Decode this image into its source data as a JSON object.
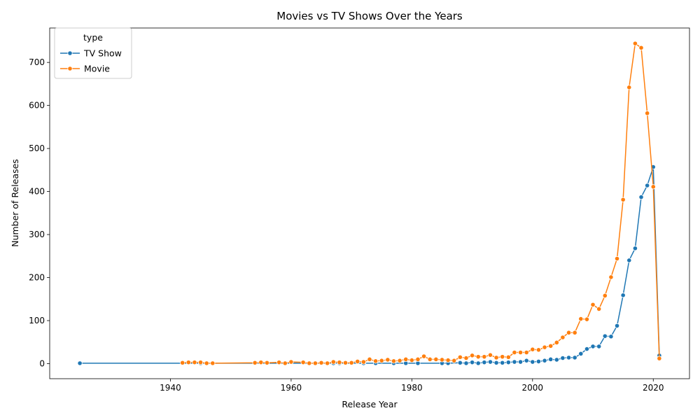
{
  "chart_data": {
    "type": "line",
    "title": "Movies vs TV Shows Over the Years",
    "xlabel": "Release Year",
    "ylabel": "Number of Releases",
    "xlim": [
      1920,
      2026
    ],
    "ylim": [
      -35,
      780
    ],
    "xticks": [
      1940,
      1960,
      1980,
      2000,
      2020
    ],
    "yticks": [
      0,
      100,
      200,
      300,
      400,
      500,
      600,
      700
    ],
    "grid": false,
    "legend": {
      "title": "type",
      "placement": "top-left"
    },
    "series": [
      {
        "name": "TV Show",
        "color": "#1f77b4",
        "points": [
          [
            1925,
            1
          ],
          [
            1945,
            1
          ],
          [
            1946,
            1
          ],
          [
            1963,
            1
          ],
          [
            1967,
            1
          ],
          [
            1968,
            1
          ],
          [
            1972,
            1
          ],
          [
            1974,
            1
          ],
          [
            1977,
            1
          ],
          [
            1979,
            1
          ],
          [
            1981,
            1
          ],
          [
            1985,
            1
          ],
          [
            1986,
            1
          ],
          [
            1988,
            2
          ],
          [
            1989,
            1
          ],
          [
            1990,
            3
          ],
          [
            1991,
            1
          ],
          [
            1992,
            3
          ],
          [
            1993,
            4
          ],
          [
            1994,
            2
          ],
          [
            1995,
            2
          ],
          [
            1996,
            3
          ],
          [
            1997,
            4
          ],
          [
            1998,
            4
          ],
          [
            1999,
            7
          ],
          [
            2000,
            4
          ],
          [
            2001,
            5
          ],
          [
            2002,
            7
          ],
          [
            2003,
            10
          ],
          [
            2004,
            9
          ],
          [
            2005,
            13
          ],
          [
            2006,
            14
          ],
          [
            2007,
            14
          ],
          [
            2008,
            23
          ],
          [
            2009,
            34
          ],
          [
            2010,
            40
          ],
          [
            2011,
            40
          ],
          [
            2012,
            64
          ],
          [
            2013,
            63
          ],
          [
            2014,
            88
          ],
          [
            2015,
            159
          ],
          [
            2016,
            240
          ],
          [
            2017,
            268
          ],
          [
            2018,
            387
          ],
          [
            2019,
            414
          ],
          [
            2020,
            457
          ],
          [
            2021,
            19
          ]
        ]
      },
      {
        "name": "Movie",
        "color": "#ff7f0e",
        "points": [
          [
            1942,
            2
          ],
          [
            1943,
            3
          ],
          [
            1944,
            3
          ],
          [
            1945,
            3
          ],
          [
            1946,
            1
          ],
          [
            1947,
            1
          ],
          [
            1954,
            2
          ],
          [
            1955,
            3
          ],
          [
            1956,
            2
          ],
          [
            1958,
            3
          ],
          [
            1959,
            1
          ],
          [
            1960,
            4
          ],
          [
            1962,
            3
          ],
          [
            1963,
            1
          ],
          [
            1964,
            1
          ],
          [
            1965,
            2
          ],
          [
            1966,
            1
          ],
          [
            1967,
            4
          ],
          [
            1968,
            3
          ],
          [
            1969,
            2
          ],
          [
            1970,
            2
          ],
          [
            1971,
            5
          ],
          [
            1972,
            4
          ],
          [
            1973,
            10
          ],
          [
            1974,
            6
          ],
          [
            1975,
            7
          ],
          [
            1976,
            9
          ],
          [
            1977,
            6
          ],
          [
            1978,
            7
          ],
          [
            1979,
            10
          ],
          [
            1980,
            8
          ],
          [
            1981,
            10
          ],
          [
            1982,
            17
          ],
          [
            1983,
            10
          ],
          [
            1984,
            10
          ],
          [
            1985,
            9
          ],
          [
            1986,
            8
          ],
          [
            1987,
            7
          ],
          [
            1988,
            15
          ],
          [
            1989,
            13
          ],
          [
            1990,
            19
          ],
          [
            1991,
            16
          ],
          [
            1992,
            16
          ],
          [
            1993,
            20
          ],
          [
            1994,
            14
          ],
          [
            1995,
            16
          ],
          [
            1996,
            15
          ],
          [
            1997,
            26
          ],
          [
            1998,
            26
          ],
          [
            1999,
            26
          ],
          [
            2000,
            33
          ],
          [
            2001,
            32
          ],
          [
            2002,
            38
          ],
          [
            2003,
            41
          ],
          [
            2004,
            49
          ],
          [
            2005,
            61
          ],
          [
            2006,
            72
          ],
          [
            2007,
            72
          ],
          [
            2008,
            104
          ],
          [
            2009,
            103
          ],
          [
            2010,
            137
          ],
          [
            2011,
            127
          ],
          [
            2012,
            158
          ],
          [
            2013,
            201
          ],
          [
            2014,
            244
          ],
          [
            2015,
            381
          ],
          [
            2016,
            642
          ],
          [
            2017,
            744
          ],
          [
            2018,
            734
          ],
          [
            2019,
            582
          ],
          [
            2020,
            411
          ],
          [
            2021,
            12
          ]
        ]
      }
    ]
  }
}
